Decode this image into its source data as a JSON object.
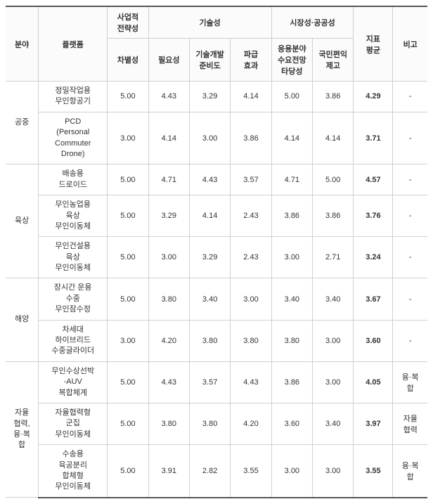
{
  "headers": {
    "division": "분야",
    "platform": "플랫폼",
    "business": "사업적\n전략성",
    "tech": "기술성",
    "market": "시장성·공공성",
    "avg": "지표\n평균",
    "note": "비고",
    "diff": "차별성",
    "necessity": "필요성",
    "readiness": "기술개발\n준비도",
    "spread": "파급\n효과",
    "demand": "응용분야\n수요전망\n타당성",
    "public": "국민편익\n제고"
  },
  "groups": [
    {
      "name": "공중",
      "rows": [
        {
          "platform": "정밀작업용\n무인항공기",
          "v": [
            "5.00",
            "4.43",
            "3.29",
            "4.14",
            "5.00",
            "3.86"
          ],
          "avg": "4.29",
          "note": "-"
        },
        {
          "platform": "PCD\n(Personal\nCommuter\nDrone)",
          "v": [
            "3.00",
            "4.14",
            "3.00",
            "3.86",
            "4.14",
            "4.14"
          ],
          "avg": "3.71",
          "note": "-"
        }
      ]
    },
    {
      "name": "육상",
      "rows": [
        {
          "platform": "배송용\n드로이드",
          "v": [
            "5.00",
            "4.71",
            "4.43",
            "3.57",
            "4.71",
            "5.00"
          ],
          "avg": "4.57",
          "note": "-"
        },
        {
          "platform": "무인농업용\n육상\n무인이동체",
          "v": [
            "5.00",
            "3.29",
            "4.14",
            "2.43",
            "3.86",
            "3.86"
          ],
          "avg": "3.76",
          "note": "-"
        },
        {
          "platform": "무인건설용\n육상\n무인이동체",
          "v": [
            "5.00",
            "3.00",
            "3.29",
            "2.43",
            "3.00",
            "2.71"
          ],
          "avg": "3.24",
          "note": "-"
        }
      ]
    },
    {
      "name": "해양",
      "rows": [
        {
          "platform": "장시간 운용\n수중\n무인잠수정",
          "v": [
            "5.00",
            "3.80",
            "3.40",
            "3.00",
            "3.40",
            "3.40"
          ],
          "avg": "3.67",
          "note": "-"
        },
        {
          "platform": "차세대\n하이브리드\n수중글라이더",
          "v": [
            "3.00",
            "4.20",
            "3.80",
            "3.80",
            "3.80",
            "3.00"
          ],
          "avg": "3.60",
          "note": "-"
        }
      ]
    },
    {
      "name": "자율\n협력,\n융·복\n합",
      "rows": [
        {
          "platform": "무인수상선박\n-AUV\n복합체계",
          "v": [
            "5.00",
            "4.43",
            "3.57",
            "4.43",
            "3.86",
            "3.00"
          ],
          "avg": "4.05",
          "note": "융·복\n합"
        },
        {
          "platform": "자율협력형\n군집\n무인이동체",
          "v": [
            "5.00",
            "3.80",
            "3.80",
            "4.20",
            "3.60",
            "3.40"
          ],
          "avg": "3.97",
          "note": "자율\n협력"
        },
        {
          "platform": "수송용\n육공분리\n합체형\n무인이동체",
          "v": [
            "5.00",
            "3.91",
            "2.82",
            "3.55",
            "3.00",
            "3.00"
          ],
          "avg": "3.55",
          "note": "융·복\n합"
        }
      ]
    }
  ]
}
